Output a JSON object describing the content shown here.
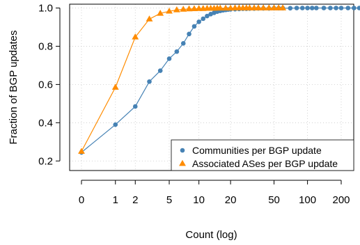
{
  "chart_data": {
    "type": "line",
    "title": "",
    "xlabel": "Count (log)",
    "ylabel": "Fraction of BGP updates",
    "x_scale": "log(1+x)",
    "x_ticks": [
      0,
      1,
      2,
      5,
      10,
      20,
      50,
      100,
      200
    ],
    "x_tick_labels": [
      "0",
      "1",
      "2",
      "5",
      "10",
      "20",
      "50",
      "100",
      "200"
    ],
    "y_ticks": [
      0.2,
      0.4,
      0.6,
      0.8,
      1.0
    ],
    "y_tick_labels": [
      "0.2",
      "0.4",
      "0.6",
      "0.8",
      "1.0"
    ],
    "ylim": [
      0.15,
      1.02
    ],
    "xlim": [
      0,
      300
    ],
    "grid": true,
    "legend_position": "bottom-right",
    "series": [
      {
        "name": "Communities per BGP update",
        "color": "#4682b4",
        "marker": "circle",
        "x": [
          0,
          1,
          2,
          3,
          4,
          5,
          6,
          7,
          8,
          9,
          10,
          11,
          12,
          13,
          14,
          15,
          16,
          17,
          18,
          19,
          20,
          22,
          24,
          26,
          28,
          30,
          33,
          36,
          40,
          45,
          50,
          55,
          60,
          70,
          80,
          90,
          100,
          110,
          120,
          140,
          160,
          180,
          200,
          230,
          260,
          290
        ],
        "y": [
          0.245,
          0.39,
          0.485,
          0.615,
          0.672,
          0.735,
          0.772,
          0.815,
          0.864,
          0.904,
          0.928,
          0.944,
          0.958,
          0.968,
          0.975,
          0.981,
          0.985,
          0.988,
          0.99,
          0.992,
          0.993,
          0.994,
          0.995,
          0.996,
          0.996,
          0.997,
          0.997,
          0.998,
          0.998,
          0.998,
          0.999,
          0.999,
          0.999,
          0.999,
          1.0,
          1.0,
          1.0,
          1.0,
          1.0,
          1.0,
          1.0,
          1.0,
          1.0,
          1.0,
          1.0,
          1.0
        ]
      },
      {
        "name": "Associated ASes per BGP update",
        "color": "#ff8c00",
        "marker": "triangle",
        "x": [
          0,
          1,
          2,
          3,
          4,
          5,
          6,
          7,
          8,
          9,
          10,
          11,
          12,
          13,
          14,
          15,
          16,
          18,
          20,
          22,
          24,
          26,
          28,
          30,
          33,
          36,
          40,
          45,
          50,
          55,
          60
        ],
        "y": [
          0.25,
          0.585,
          0.848,
          0.942,
          0.972,
          0.983,
          0.99,
          0.993,
          0.995,
          0.996,
          0.997,
          0.997,
          0.998,
          0.998,
          0.998,
          0.999,
          0.999,
          0.999,
          0.999,
          1.0,
          1.0,
          1.0,
          1.0,
          1.0,
          1.0,
          1.0,
          1.0,
          1.0,
          1.0,
          1.0,
          1.0
        ]
      }
    ]
  }
}
